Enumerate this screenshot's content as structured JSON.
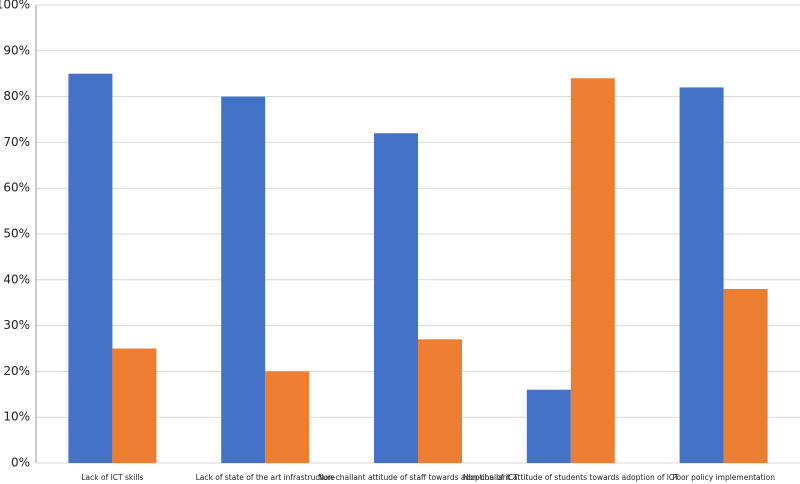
{
  "chart_data": {
    "type": "bar",
    "categories": [
      "Lack of ICT skills",
      "Lack of state of the art infrastructure",
      "Non-challant attitude of staff towards adoption of ICT",
      "Non-challant attitude of students towards adoption of ICT",
      "Poor policy implementation"
    ],
    "series": [
      {
        "color": "#4472c4",
        "values": [
          85,
          80,
          72,
          16,
          82
        ]
      },
      {
        "color": "#ed7d31",
        "values": [
          25,
          20,
          27,
          84,
          38
        ]
      }
    ],
    "ylim": [
      0,
      100
    ],
    "yticks": [
      {
        "value": 0,
        "label": "0%"
      },
      {
        "value": 10,
        "label": "10%"
      },
      {
        "value": 20,
        "label": "20%"
      },
      {
        "value": 30,
        "label": "30%"
      },
      {
        "value": 40,
        "label": "40%"
      },
      {
        "value": 50,
        "label": "50%"
      },
      {
        "value": 60,
        "label": "60%"
      },
      {
        "value": 70,
        "label": "70%"
      },
      {
        "value": 80,
        "label": "80%"
      },
      {
        "value": 90,
        "label": "90%"
      },
      {
        "value": 100,
        "label": "100%"
      }
    ],
    "grid": true
  }
}
